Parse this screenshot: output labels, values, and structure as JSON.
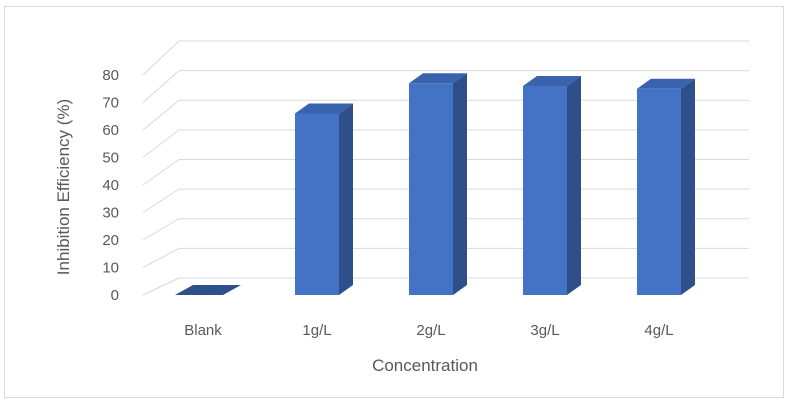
{
  "chart_data": {
    "type": "bar",
    "style": "3d-column",
    "categories": [
      "Blank",
      "1g/L",
      "2g/L",
      "3g/L",
      "4g/L"
    ],
    "series": [
      {
        "values": [
          0,
          66,
          77,
          76,
          75
        ]
      }
    ],
    "xlabel": "Concentration",
    "ylabel": "Inhibition Efficiency (%)",
    "ylim": [
      0,
      80
    ],
    "yticks": [
      "0",
      "10",
      "20",
      "30",
      "40",
      "50",
      "60",
      "70",
      "80"
    ],
    "grid": true,
    "legend": false,
    "colors": {
      "bar_front": "#4472c4",
      "bar_side": "#2f4f8a",
      "bar_top": "#3a63ad",
      "grid": "#d9d9d9",
      "text": "#595959"
    }
  }
}
